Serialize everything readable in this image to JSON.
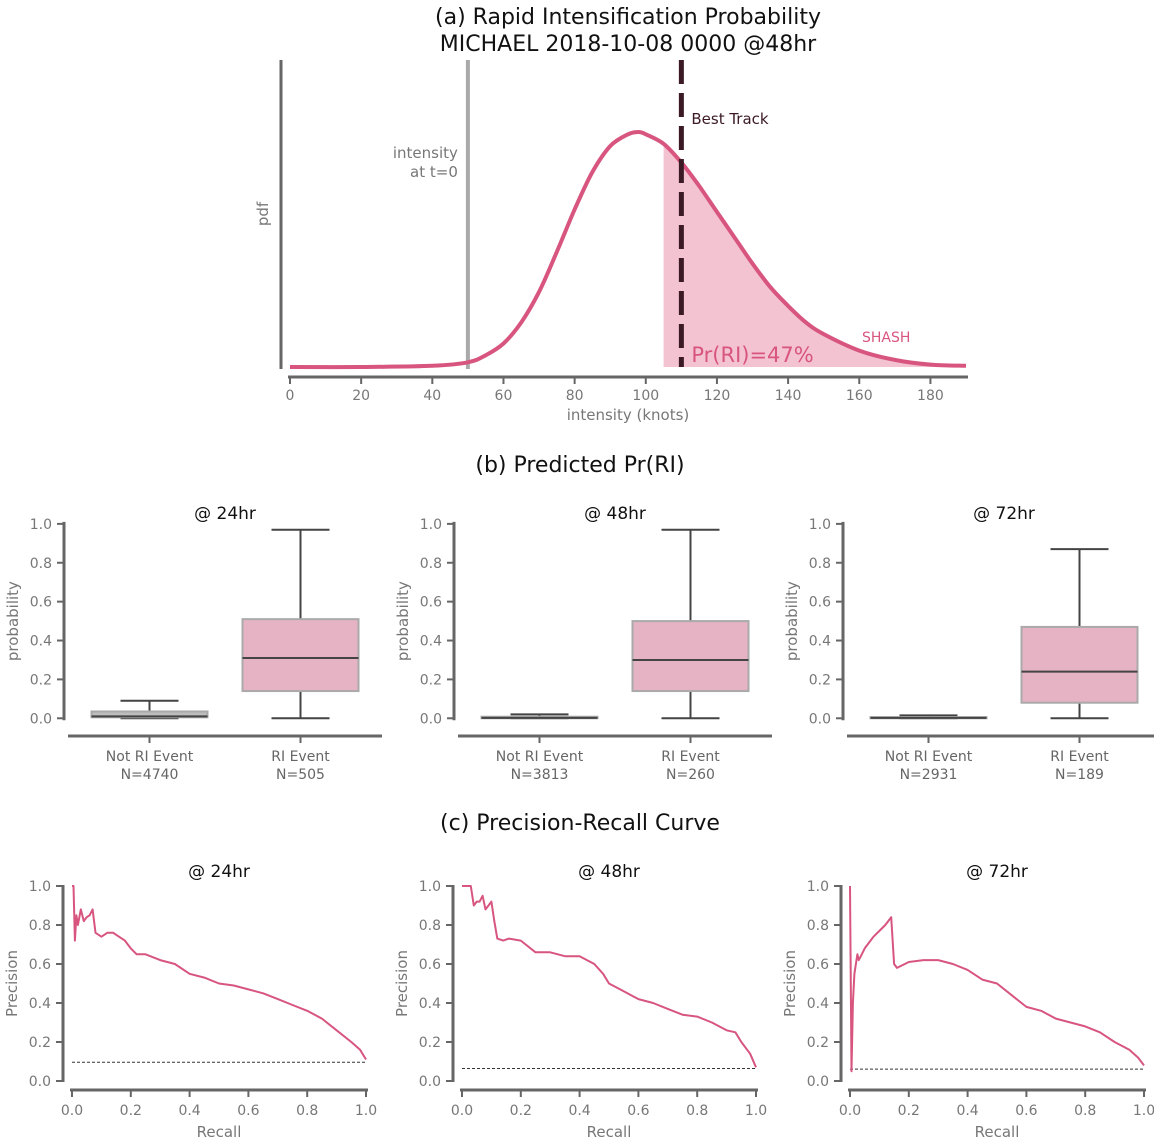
{
  "colors": {
    "accent": "#d7557f",
    "accent_fill": "#f4c3d2",
    "box_fill": "#e5b3c3",
    "grey_box_fill": "#bdbdbd",
    "axis": "#666666",
    "best_track": "#3b1a26",
    "init_line": "#a9a9a9",
    "median": "#444444"
  },
  "chart_data": [
    {
      "id": "a",
      "type": "area",
      "title_line1": "(a) Rapid Intensification Probability",
      "title_line2": "MICHAEL 2018-10-08 0000 @48hr",
      "xlabel": "intensity (knots)",
      "ylabel": "pdf",
      "xlim": [
        0,
        190
      ],
      "xticks": [
        0,
        20,
        40,
        60,
        80,
        100,
        120,
        140,
        160,
        180
      ],
      "series": [
        {
          "name": "SHASH",
          "x": [
            0,
            20,
            40,
            50,
            55,
            60,
            65,
            70,
            75,
            80,
            85,
            90,
            95,
            98,
            100,
            105,
            110,
            115,
            120,
            125,
            130,
            135,
            140,
            145,
            150,
            160,
            170,
            180,
            190
          ],
          "y": [
            0,
            0,
            0.005,
            0.02,
            0.05,
            0.1,
            0.19,
            0.32,
            0.49,
            0.67,
            0.83,
            0.94,
            0.99,
            1.0,
            0.99,
            0.95,
            0.87,
            0.77,
            0.66,
            0.55,
            0.44,
            0.34,
            0.26,
            0.19,
            0.14,
            0.07,
            0.03,
            0.01,
            0.005
          ]
        }
      ],
      "shaded_from_x": 105,
      "intensity_t0": {
        "x": 50,
        "label_line1": "intensity",
        "label_line2": "at t=0"
      },
      "best_track": {
        "x": 110,
        "label": "Best Track"
      },
      "annotation": "Pr(RI)=47%",
      "series_label": "SHASH"
    },
    {
      "id": "b",
      "type": "box",
      "section_title": "(b) Predicted Pr(RI)",
      "ylabel": "probability",
      "ylim": [
        -0.05,
        1.02
      ],
      "yticks": [
        0.0,
        0.2,
        0.4,
        0.6,
        0.8,
        1.0
      ],
      "panels": [
        {
          "title": "@ 24hr",
          "boxes": [
            {
              "label_line1": "Not RI Event",
              "label_line2": "N=4740",
              "whisker_low": 0.0,
              "q1": 0.005,
              "median": 0.01,
              "q3": 0.035,
              "whisker_high": 0.09,
              "style": "grey"
            },
            {
              "label_line1": "RI Event",
              "label_line2": "N=505",
              "whisker_low": 0.0,
              "q1": 0.14,
              "median": 0.31,
              "q3": 0.51,
              "whisker_high": 0.97,
              "style": "pink"
            }
          ]
        },
        {
          "title": "@ 48hr",
          "boxes": [
            {
              "label_line1": "Not RI Event",
              "label_line2": "N=3813",
              "whisker_low": 0.0,
              "q1": 0.0,
              "median": 0.002,
              "q3": 0.008,
              "whisker_high": 0.02,
              "style": "grey"
            },
            {
              "label_line1": "RI Event",
              "label_line2": "N=260",
              "whisker_low": 0.0,
              "q1": 0.14,
              "median": 0.3,
              "q3": 0.5,
              "whisker_high": 0.97,
              "style": "pink"
            }
          ]
        },
        {
          "title": "@ 72hr",
          "boxes": [
            {
              "label_line1": "Not RI Event",
              "label_line2": "N=2931",
              "whisker_low": 0.0,
              "q1": 0.0,
              "median": 0.002,
              "q3": 0.006,
              "whisker_high": 0.015,
              "style": "grey"
            },
            {
              "label_line1": "RI Event",
              "label_line2": "N=189",
              "whisker_low": 0.0,
              "q1": 0.08,
              "median": 0.24,
              "q3": 0.47,
              "whisker_high": 0.87,
              "style": "pink"
            }
          ]
        }
      ]
    },
    {
      "id": "c",
      "type": "line",
      "section_title": "(c) Precision-Recall Curve",
      "xlabel": "Recall",
      "ylabel": "Precision",
      "xlim": [
        0,
        1
      ],
      "ylim": [
        0,
        1
      ],
      "xticks": [
        0.0,
        0.2,
        0.4,
        0.6,
        0.8,
        1.0
      ],
      "yticks": [
        0.0,
        0.2,
        0.4,
        0.6,
        0.8,
        1.0
      ],
      "panels": [
        {
          "title": "@ 24hr",
          "baseline": 0.096,
          "x": [
            0.0,
            0.005,
            0.01,
            0.015,
            0.02,
            0.03,
            0.04,
            0.05,
            0.06,
            0.07,
            0.08,
            0.1,
            0.12,
            0.14,
            0.16,
            0.18,
            0.2,
            0.22,
            0.25,
            0.3,
            0.35,
            0.4,
            0.45,
            0.5,
            0.55,
            0.6,
            0.65,
            0.7,
            0.75,
            0.8,
            0.85,
            0.9,
            0.95,
            0.98,
            1.0
          ],
          "y": [
            1.0,
            1.0,
            0.72,
            0.85,
            0.8,
            0.88,
            0.82,
            0.84,
            0.85,
            0.88,
            0.76,
            0.74,
            0.76,
            0.76,
            0.74,
            0.72,
            0.68,
            0.65,
            0.65,
            0.62,
            0.6,
            0.55,
            0.53,
            0.5,
            0.49,
            0.47,
            0.45,
            0.42,
            0.39,
            0.36,
            0.32,
            0.26,
            0.2,
            0.16,
            0.11
          ]
        },
        {
          "title": "@ 48hr",
          "baseline": 0.064,
          "x": [
            0.0,
            0.01,
            0.02,
            0.03,
            0.04,
            0.05,
            0.06,
            0.07,
            0.08,
            0.09,
            0.1,
            0.11,
            0.12,
            0.14,
            0.16,
            0.2,
            0.25,
            0.3,
            0.35,
            0.4,
            0.45,
            0.48,
            0.5,
            0.55,
            0.6,
            0.65,
            0.7,
            0.75,
            0.8,
            0.85,
            0.9,
            0.93,
            0.95,
            0.98,
            1.0
          ],
          "y": [
            1.0,
            1.0,
            1.0,
            1.0,
            0.9,
            0.92,
            0.92,
            0.95,
            0.88,
            0.9,
            0.92,
            0.82,
            0.73,
            0.72,
            0.73,
            0.72,
            0.66,
            0.66,
            0.64,
            0.64,
            0.6,
            0.55,
            0.5,
            0.46,
            0.42,
            0.4,
            0.37,
            0.34,
            0.33,
            0.3,
            0.26,
            0.25,
            0.2,
            0.14,
            0.07
          ]
        },
        {
          "title": "@ 72hr",
          "baseline": 0.061,
          "x": [
            0.0,
            0.005,
            0.01,
            0.015,
            0.02,
            0.025,
            0.03,
            0.04,
            0.05,
            0.06,
            0.08,
            0.1,
            0.12,
            0.14,
            0.15,
            0.16,
            0.2,
            0.25,
            0.3,
            0.35,
            0.4,
            0.45,
            0.5,
            0.55,
            0.6,
            0.65,
            0.7,
            0.75,
            0.8,
            0.85,
            0.9,
            0.95,
            0.98,
            1.0
          ],
          "y": [
            1.0,
            0.05,
            0.4,
            0.55,
            0.6,
            0.65,
            0.62,
            0.65,
            0.68,
            0.7,
            0.74,
            0.77,
            0.8,
            0.84,
            0.6,
            0.58,
            0.61,
            0.62,
            0.62,
            0.6,
            0.57,
            0.52,
            0.5,
            0.44,
            0.38,
            0.36,
            0.32,
            0.3,
            0.28,
            0.25,
            0.2,
            0.16,
            0.12,
            0.08
          ]
        }
      ]
    }
  ]
}
